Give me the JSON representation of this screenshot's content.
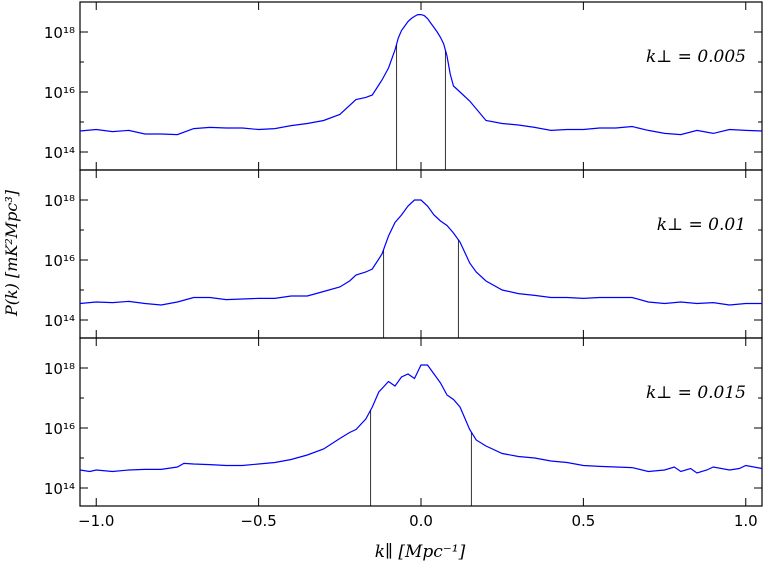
{
  "figure": {
    "ylabel": "P(k) [mK²Mpc³]",
    "xlabel": "k∥ [Mpc⁻¹]"
  },
  "chart_data": [
    {
      "type": "line",
      "annotation": "k⊥ = 0.005",
      "xlim": [
        -1.05,
        1.05
      ],
      "ylim_log10": [
        13.4,
        19.0
      ],
      "yscale": "log",
      "yticks": [
        "10¹⁴",
        "10¹⁶",
        "10¹⁸"
      ],
      "xticks": [
        "−1.0",
        "−0.5",
        "0.0",
        "0.5",
        "1.0"
      ],
      "vlines": [
        -0.075,
        0.075
      ],
      "series": [
        {
          "color": "#0000ff",
          "x": [
            -1.05,
            -1.0,
            -0.95,
            -0.9,
            -0.85,
            -0.8,
            -0.75,
            -0.7,
            -0.65,
            -0.6,
            -0.55,
            -0.5,
            -0.45,
            -0.4,
            -0.35,
            -0.3,
            -0.25,
            -0.2,
            -0.17,
            -0.15,
            -0.12,
            -0.1,
            -0.08,
            -0.07,
            -0.06,
            -0.05,
            -0.04,
            -0.03,
            -0.02,
            -0.01,
            0.0,
            0.01,
            0.02,
            0.03,
            0.04,
            0.05,
            0.06,
            0.07,
            0.08,
            0.09,
            0.1,
            0.12,
            0.15,
            0.2,
            0.25,
            0.3,
            0.35,
            0.4,
            0.45,
            0.5,
            0.55,
            0.6,
            0.65,
            0.7,
            0.75,
            0.8,
            0.85,
            0.9,
            0.95,
            1.0,
            1.05
          ],
          "log10_y": [
            14.7,
            14.75,
            14.68,
            14.72,
            14.6,
            14.6,
            14.58,
            14.78,
            14.82,
            14.8,
            14.8,
            14.75,
            14.78,
            14.88,
            14.95,
            15.05,
            15.25,
            15.75,
            15.82,
            15.9,
            16.4,
            16.8,
            17.4,
            17.8,
            18.05,
            18.2,
            18.35,
            18.45,
            18.52,
            18.58,
            18.58,
            18.55,
            18.45,
            18.3,
            18.15,
            18.0,
            17.82,
            17.6,
            17.2,
            16.6,
            16.2,
            16.0,
            15.7,
            15.05,
            14.95,
            14.9,
            14.82,
            14.72,
            14.75,
            14.75,
            14.8,
            14.8,
            14.85,
            14.72,
            14.62,
            14.58,
            14.72,
            14.62,
            14.75,
            14.72,
            14.7
          ]
        }
      ]
    },
    {
      "type": "line",
      "annotation": "k⊥ = 0.01",
      "xlim": [
        -1.05,
        1.05
      ],
      "ylim_log10": [
        13.4,
        19.0
      ],
      "yscale": "log",
      "yticks": [
        "10¹⁴",
        "10¹⁶",
        "10¹⁸"
      ],
      "xticks": [
        "−1.0",
        "−0.5",
        "0.0",
        "0.5",
        "1.0"
      ],
      "vlines": [
        -0.115,
        0.115
      ],
      "series": [
        {
          "color": "#0000ff",
          "x": [
            -1.05,
            -1.0,
            -0.95,
            -0.9,
            -0.85,
            -0.8,
            -0.75,
            -0.7,
            -0.65,
            -0.6,
            -0.55,
            -0.5,
            -0.45,
            -0.4,
            -0.35,
            -0.3,
            -0.25,
            -0.22,
            -0.2,
            -0.17,
            -0.15,
            -0.12,
            -0.1,
            -0.08,
            -0.06,
            -0.04,
            -0.02,
            0.0,
            0.02,
            0.04,
            0.06,
            0.08,
            0.1,
            0.12,
            0.15,
            0.17,
            0.2,
            0.25,
            0.3,
            0.35,
            0.4,
            0.45,
            0.5,
            0.55,
            0.6,
            0.65,
            0.7,
            0.75,
            0.8,
            0.85,
            0.9,
            0.95,
            1.0,
            1.05
          ],
          "log10_y": [
            14.55,
            14.6,
            14.58,
            14.62,
            14.55,
            14.5,
            14.6,
            14.75,
            14.75,
            14.68,
            14.7,
            14.72,
            14.72,
            14.8,
            14.8,
            14.95,
            15.1,
            15.3,
            15.5,
            15.6,
            15.7,
            16.2,
            16.8,
            17.25,
            17.5,
            17.8,
            18.0,
            18.0,
            17.8,
            17.5,
            17.3,
            17.15,
            16.9,
            16.6,
            15.9,
            15.6,
            15.3,
            15.0,
            14.88,
            14.82,
            14.75,
            14.75,
            14.72,
            14.75,
            14.75,
            14.75,
            14.6,
            14.55,
            14.6,
            14.55,
            14.58,
            14.5,
            14.55,
            14.55
          ]
        }
      ]
    },
    {
      "type": "line",
      "annotation": "k⊥ = 0.015",
      "xlim": [
        -1.05,
        1.05
      ],
      "ylim_log10": [
        13.4,
        19.0
      ],
      "yscale": "log",
      "yticks": [
        "10¹⁴",
        "10¹⁶",
        "10¹⁸"
      ],
      "xticks": [
        "−1.0",
        "−0.5",
        "0.0",
        "0.5",
        "1.0"
      ],
      "vlines": [
        -0.155,
        0.155
      ],
      "series": [
        {
          "color": "#0000ff",
          "x": [
            -1.05,
            -1.02,
            -1.0,
            -0.95,
            -0.9,
            -0.85,
            -0.8,
            -0.75,
            -0.73,
            -0.7,
            -0.65,
            -0.6,
            -0.55,
            -0.5,
            -0.45,
            -0.4,
            -0.35,
            -0.3,
            -0.25,
            -0.22,
            -0.2,
            -0.17,
            -0.15,
            -0.13,
            -0.1,
            -0.08,
            -0.06,
            -0.04,
            -0.02,
            0.0,
            0.02,
            0.04,
            0.06,
            0.08,
            0.1,
            0.12,
            0.15,
            0.17,
            0.2,
            0.25,
            0.3,
            0.35,
            0.4,
            0.45,
            0.5,
            0.55,
            0.6,
            0.65,
            0.7,
            0.75,
            0.78,
            0.8,
            0.83,
            0.85,
            0.88,
            0.9,
            0.95,
            0.98,
            1.0,
            1.05
          ],
          "log10_y": [
            14.6,
            14.55,
            14.6,
            14.55,
            14.6,
            14.62,
            14.62,
            14.7,
            14.82,
            14.8,
            14.78,
            14.75,
            14.75,
            14.8,
            14.85,
            14.95,
            15.1,
            15.3,
            15.65,
            15.85,
            15.95,
            16.3,
            16.7,
            17.2,
            17.55,
            17.4,
            17.7,
            17.8,
            17.65,
            18.1,
            18.1,
            17.8,
            17.5,
            17.1,
            16.95,
            16.7,
            15.95,
            15.6,
            15.4,
            15.15,
            15.05,
            15.0,
            14.9,
            14.85,
            14.75,
            14.72,
            14.7,
            14.68,
            14.55,
            14.6,
            14.7,
            14.55,
            14.65,
            14.5,
            14.6,
            14.7,
            14.6,
            14.65,
            14.75,
            14.65
          ]
        }
      ]
    }
  ]
}
